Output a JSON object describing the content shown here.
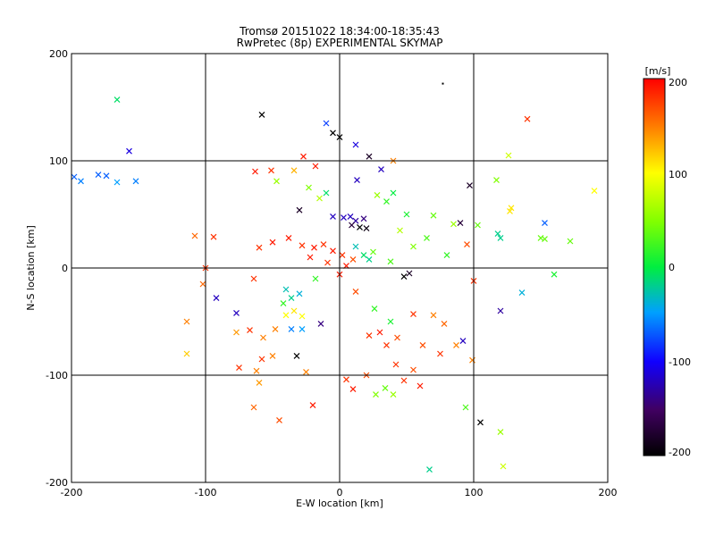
{
  "chart_data": {
    "type": "scatter",
    "title": "Tromsø 20151022 18:34:00-18:35:43",
    "subtitle": "RwPretec (8p) EXPERIMENTAL SKYMAP",
    "xlabel": "E-W location [km]",
    "ylabel": "N-S location [km]",
    "xlim": [
      -200,
      200
    ],
    "ylim": [
      -200,
      200
    ],
    "x_ticks": [
      "-200",
      "-100",
      "0",
      "100",
      "200"
    ],
    "y_ticks": [
      "-200",
      "-100",
      "0",
      "100",
      "200"
    ],
    "grid": true,
    "colorbar": {
      "label": "[m/s]",
      "range": [
        -200,
        200
      ],
      "ticks": [
        "200",
        "100",
        "0",
        "-100",
        "-200"
      ]
    },
    "points": [
      {
        "x": -166,
        "y": 157,
        "v": -10,
        "m": "x"
      },
      {
        "x": -157,
        "y": 109,
        "v": -110,
        "m": "x"
      },
      {
        "x": -198,
        "y": 85,
        "v": -70,
        "m": "x"
      },
      {
        "x": -180,
        "y": 87,
        "v": -70,
        "m": "x"
      },
      {
        "x": -174,
        "y": 86,
        "v": -70,
        "m": "x"
      },
      {
        "x": -152,
        "y": 81,
        "v": -60,
        "m": "x"
      },
      {
        "x": -166,
        "y": 80,
        "v": -50,
        "m": "x"
      },
      {
        "x": -193,
        "y": 81,
        "v": -60,
        "m": "x"
      },
      {
        "x": -58,
        "y": 143,
        "v": -200,
        "m": "x"
      },
      {
        "x": 140,
        "y": 139,
        "v": 180,
        "m": "x"
      },
      {
        "x": 77,
        "y": 172,
        "v": -200,
        "m": "."
      },
      {
        "x": 126,
        "y": 105,
        "v": 80,
        "m": "x"
      },
      {
        "x": 117,
        "y": 82,
        "v": 50,
        "m": "x"
      },
      {
        "x": 190,
        "y": 72,
        "v": 100,
        "m": "x"
      },
      {
        "x": 97,
        "y": 77,
        "v": -180,
        "m": "x"
      },
      {
        "x": 128,
        "y": 56,
        "v": 110,
        "m": "x"
      },
      {
        "x": 127,
        "y": 53,
        "v": 110,
        "m": "x"
      },
      {
        "x": 153,
        "y": 42,
        "v": -70,
        "m": "x"
      },
      {
        "x": 150,
        "y": 28,
        "v": 40,
        "m": "x"
      },
      {
        "x": 153,
        "y": 27,
        "v": 40,
        "m": "x"
      },
      {
        "x": 172,
        "y": 25,
        "v": 40,
        "m": "x"
      },
      {
        "x": 118,
        "y": 32,
        "v": -20,
        "m": "x"
      },
      {
        "x": 120,
        "y": 28,
        "v": -20,
        "m": "x"
      },
      {
        "x": 160,
        "y": -6,
        "v": 10,
        "m": "x"
      },
      {
        "x": 136,
        "y": -23,
        "v": -40,
        "m": "x"
      },
      {
        "x": 90,
        "y": 42,
        "v": -170,
        "m": "x"
      },
      {
        "x": 103,
        "y": 40,
        "v": 40,
        "m": "x"
      },
      {
        "x": 92,
        "y": -68,
        "v": -120,
        "m": "x"
      },
      {
        "x": 87,
        "y": -72,
        "v": 150,
        "m": "x"
      },
      {
        "x": 99,
        "y": -86,
        "v": 150,
        "m": "x"
      },
      {
        "x": 105,
        "y": -144,
        "v": -200,
        "m": "x"
      },
      {
        "x": 67,
        "y": -188,
        "v": -20,
        "m": "x"
      },
      {
        "x": 122,
        "y": -185,
        "v": 80,
        "m": "x"
      },
      {
        "x": 94,
        "y": -130,
        "v": 30,
        "m": "x"
      },
      {
        "x": 120,
        "y": -153,
        "v": 60,
        "m": "x"
      },
      {
        "x": 0,
        "y": 122,
        "v": -200,
        "m": "x"
      },
      {
        "x": -5,
        "y": 126,
        "v": -200,
        "m": "x"
      },
      {
        "x": -10,
        "y": 135,
        "v": -80,
        "m": "x"
      },
      {
        "x": 12,
        "y": 115,
        "v": -110,
        "m": "x"
      },
      {
        "x": -27,
        "y": 104,
        "v": 190,
        "m": "x"
      },
      {
        "x": -18,
        "y": 95,
        "v": 190,
        "m": "x"
      },
      {
        "x": 22,
        "y": 104,
        "v": -180,
        "m": "x"
      },
      {
        "x": 40,
        "y": 100,
        "v": 150,
        "m": "x"
      },
      {
        "x": 31,
        "y": 92,
        "v": -120,
        "m": "x"
      },
      {
        "x": 13,
        "y": 82,
        "v": -120,
        "m": "x"
      },
      {
        "x": -51,
        "y": 91,
        "v": 180,
        "m": "x"
      },
      {
        "x": -47,
        "y": 81,
        "v": 60,
        "m": "x"
      },
      {
        "x": -63,
        "y": 90,
        "v": 190,
        "m": "x"
      },
      {
        "x": -34,
        "y": 91,
        "v": 130,
        "m": "x"
      },
      {
        "x": -30,
        "y": 54,
        "v": -180,
        "m": "x"
      },
      {
        "x": 3,
        "y": 47,
        "v": -120,
        "m": "x"
      },
      {
        "x": 8,
        "y": 48,
        "v": -120,
        "m": "x"
      },
      {
        "x": 12,
        "y": 44,
        "v": -130,
        "m": "x"
      },
      {
        "x": 18,
        "y": 46,
        "v": -140,
        "m": "x"
      },
      {
        "x": -5,
        "y": 48,
        "v": -120,
        "m": "x"
      },
      {
        "x": 15,
        "y": 38,
        "v": -200,
        "m": "x"
      },
      {
        "x": 20,
        "y": 37,
        "v": -190,
        "m": "x"
      },
      {
        "x": 9,
        "y": 40,
        "v": -170,
        "m": "x"
      },
      {
        "x": 50,
        "y": 50,
        "v": 10,
        "m": "x"
      },
      {
        "x": 70,
        "y": 49,
        "v": 40,
        "m": "x"
      },
      {
        "x": 85,
        "y": 41,
        "v": 60,
        "m": "x"
      },
      {
        "x": -108,
        "y": 30,
        "v": 160,
        "m": "x"
      },
      {
        "x": -94,
        "y": 29,
        "v": 180,
        "m": "x"
      },
      {
        "x": -60,
        "y": 19,
        "v": 180,
        "m": "x"
      },
      {
        "x": -50,
        "y": 24,
        "v": 190,
        "m": "x"
      },
      {
        "x": -38,
        "y": 28,
        "v": 190,
        "m": "x"
      },
      {
        "x": -28,
        "y": 21,
        "v": 180,
        "m": "x"
      },
      {
        "x": -19,
        "y": 19,
        "v": 190,
        "m": "x"
      },
      {
        "x": -12,
        "y": 22,
        "v": 180,
        "m": "x"
      },
      {
        "x": -5,
        "y": 16,
        "v": 190,
        "m": "x"
      },
      {
        "x": 2,
        "y": 12,
        "v": 180,
        "m": "x"
      },
      {
        "x": 10,
        "y": 8,
        "v": 170,
        "m": "x"
      },
      {
        "x": -22,
        "y": 10,
        "v": 190,
        "m": "x"
      },
      {
        "x": -9,
        "y": 5,
        "v": 180,
        "m": "x"
      },
      {
        "x": 5,
        "y": 2,
        "v": 190,
        "m": "x"
      },
      {
        "x": 18,
        "y": 12,
        "v": -10,
        "m": "x"
      },
      {
        "x": 22,
        "y": 8,
        "v": -20,
        "m": "x"
      },
      {
        "x": 12,
        "y": 20,
        "v": -30,
        "m": "x"
      },
      {
        "x": 25,
        "y": 15,
        "v": 40,
        "m": "x"
      },
      {
        "x": 38,
        "y": 6,
        "v": 30,
        "m": "x"
      },
      {
        "x": 52,
        "y": -5,
        "v": -180,
        "m": "x"
      },
      {
        "x": 48,
        "y": -8,
        "v": -200,
        "m": "x"
      },
      {
        "x": -100,
        "y": 0,
        "v": 180,
        "m": "x"
      },
      {
        "x": -64,
        "y": -10,
        "v": 180,
        "m": "x"
      },
      {
        "x": -40,
        "y": -20,
        "v": -30,
        "m": "x"
      },
      {
        "x": -36,
        "y": -28,
        "v": -20,
        "m": "x"
      },
      {
        "x": -30,
        "y": -24,
        "v": -40,
        "m": "x"
      },
      {
        "x": -42,
        "y": -33,
        "v": 20,
        "m": "x"
      },
      {
        "x": -34,
        "y": -40,
        "v": 110,
        "m": "x"
      },
      {
        "x": -40,
        "y": -44,
        "v": 100,
        "m": "x"
      },
      {
        "x": -28,
        "y": -45,
        "v": 100,
        "m": "x"
      },
      {
        "x": -36,
        "y": -57,
        "v": -60,
        "m": "x"
      },
      {
        "x": -28,
        "y": -57,
        "v": -50,
        "m": "x"
      },
      {
        "x": -48,
        "y": -57,
        "v": 150,
        "m": "x"
      },
      {
        "x": -67,
        "y": -58,
        "v": 180,
        "m": "x"
      },
      {
        "x": -57,
        "y": -65,
        "v": 150,
        "m": "x"
      },
      {
        "x": -77,
        "y": -42,
        "v": -120,
        "m": "x"
      },
      {
        "x": -92,
        "y": -28,
        "v": -120,
        "m": "x"
      },
      {
        "x": -102,
        "y": -15,
        "v": 160,
        "m": "x"
      },
      {
        "x": -114,
        "y": -50,
        "v": 150,
        "m": "x"
      },
      {
        "x": -77,
        "y": -60,
        "v": 140,
        "m": "x"
      },
      {
        "x": -50,
        "y": -82,
        "v": 150,
        "m": "x"
      },
      {
        "x": -58,
        "y": -85,
        "v": 180,
        "m": "x"
      },
      {
        "x": -62,
        "y": -96,
        "v": 150,
        "m": "x"
      },
      {
        "x": -75,
        "y": -93,
        "v": 180,
        "m": "x"
      },
      {
        "x": -114,
        "y": -80,
        "v": 120,
        "m": "x"
      },
      {
        "x": -60,
        "y": -107,
        "v": 140,
        "m": "x"
      },
      {
        "x": -32,
        "y": -82,
        "v": -200,
        "m": "x"
      },
      {
        "x": -25,
        "y": -97,
        "v": 150,
        "m": "x"
      },
      {
        "x": -64,
        "y": -130,
        "v": 160,
        "m": "x"
      },
      {
        "x": -45,
        "y": -142,
        "v": 170,
        "m": "x"
      },
      {
        "x": -20,
        "y": -128,
        "v": 190,
        "m": "x"
      },
      {
        "x": 10,
        "y": -113,
        "v": 190,
        "m": "x"
      },
      {
        "x": 5,
        "y": -104,
        "v": 180,
        "m": "x"
      },
      {
        "x": 20,
        "y": -100,
        "v": 170,
        "m": "x"
      },
      {
        "x": 27,
        "y": -118,
        "v": 50,
        "m": "x"
      },
      {
        "x": 34,
        "y": -112,
        "v": 40,
        "m": "x"
      },
      {
        "x": 40,
        "y": -118,
        "v": 60,
        "m": "x"
      },
      {
        "x": 48,
        "y": -105,
        "v": 180,
        "m": "x"
      },
      {
        "x": 55,
        "y": -95,
        "v": 170,
        "m": "x"
      },
      {
        "x": 60,
        "y": -110,
        "v": 190,
        "m": "x"
      },
      {
        "x": 42,
        "y": -90,
        "v": 180,
        "m": "x"
      },
      {
        "x": 30,
        "y": -60,
        "v": 190,
        "m": "x"
      },
      {
        "x": 35,
        "y": -72,
        "v": 180,
        "m": "x"
      },
      {
        "x": 43,
        "y": -65,
        "v": 170,
        "m": "x"
      },
      {
        "x": 22,
        "y": -63,
        "v": 180,
        "m": "x"
      },
      {
        "x": 38,
        "y": -50,
        "v": 10,
        "m": "x"
      },
      {
        "x": 55,
        "y": -43,
        "v": 180,
        "m": "x"
      },
      {
        "x": 70,
        "y": -44,
        "v": 150,
        "m": "x"
      },
      {
        "x": 78,
        "y": -52,
        "v": 160,
        "m": "x"
      },
      {
        "x": 75,
        "y": -80,
        "v": 180,
        "m": "x"
      },
      {
        "x": 62,
        "y": -72,
        "v": 170,
        "m": "x"
      },
      {
        "x": -18,
        "y": -10,
        "v": 20,
        "m": "x"
      },
      {
        "x": 0,
        "y": -6,
        "v": 190,
        "m": "x"
      },
      {
        "x": 12,
        "y": -22,
        "v": 170,
        "m": "x"
      },
      {
        "x": 26,
        "y": -38,
        "v": 20,
        "m": "x"
      },
      {
        "x": -14,
        "y": -52,
        "v": -140,
        "m": "x"
      },
      {
        "x": 100,
        "y": -12,
        "v": 180,
        "m": "x"
      },
      {
        "x": 120,
        "y": -40,
        "v": -130,
        "m": "x"
      },
      {
        "x": 80,
        "y": 12,
        "v": 20,
        "m": "x"
      },
      {
        "x": 95,
        "y": 22,
        "v": 170,
        "m": "x"
      },
      {
        "x": 65,
        "y": 28,
        "v": 30,
        "m": "x"
      },
      {
        "x": 55,
        "y": 20,
        "v": 50,
        "m": "x"
      },
      {
        "x": 45,
        "y": 35,
        "v": 70,
        "m": "x"
      },
      {
        "x": 40,
        "y": 70,
        "v": 0,
        "m": "x"
      },
      {
        "x": 35,
        "y": 62,
        "v": 20,
        "m": "x"
      },
      {
        "x": 28,
        "y": 68,
        "v": 60,
        "m": "x"
      },
      {
        "x": -10,
        "y": 70,
        "v": -10,
        "m": "x"
      },
      {
        "x": -23,
        "y": 75,
        "v": 50,
        "m": "x"
      },
      {
        "x": -15,
        "y": 65,
        "v": 70,
        "m": "x"
      }
    ]
  }
}
